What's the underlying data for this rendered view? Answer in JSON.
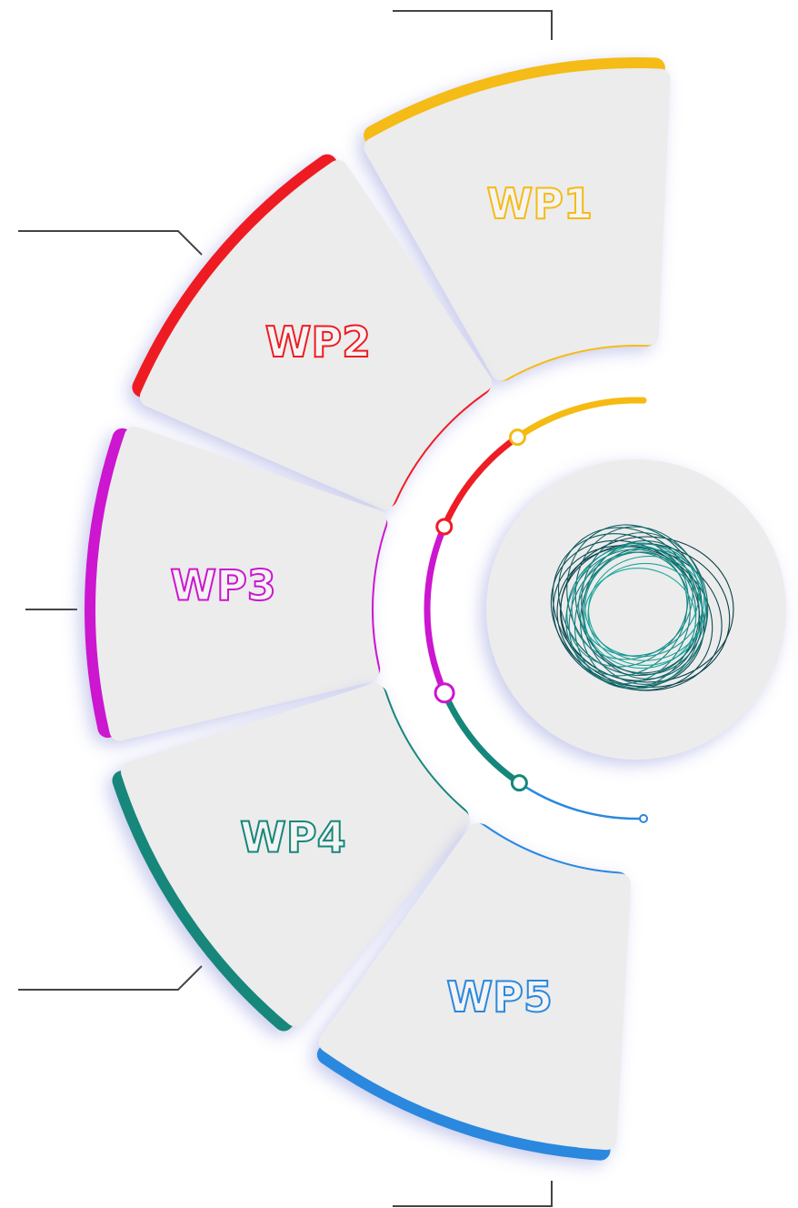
{
  "segments": [
    {
      "label": "WP1"
    },
    {
      "label": "WP2"
    },
    {
      "label": "WP3"
    },
    {
      "label": "WP4"
    },
    {
      "label": "WP5"
    }
  ]
}
